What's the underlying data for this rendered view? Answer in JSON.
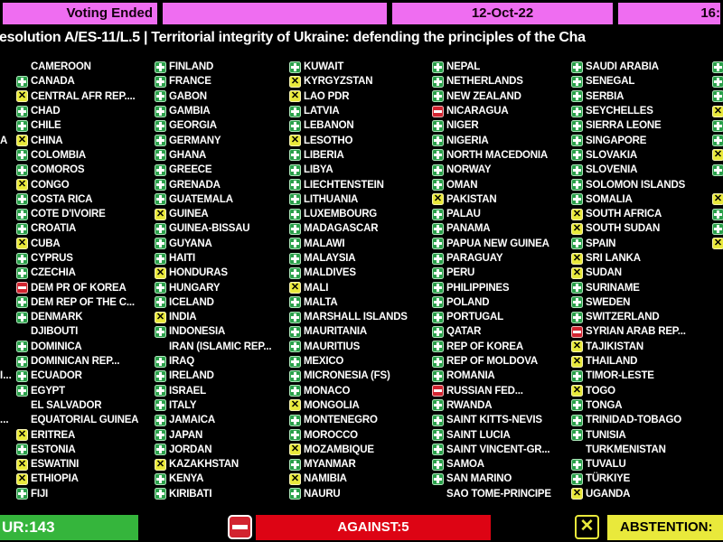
{
  "header": {
    "status": "Voting Ended",
    "date": "12-Oct-22",
    "time": "16:"
  },
  "title": "esolution A/ES-11/L.5 | Territorial integrity of Ukraine: defending the principles of the Cha",
  "grid": {
    "columns": [
      {
        "countries": [
          {
            "name": "CAMEROON",
            "vote": "none"
          },
          {
            "name": "CANADA",
            "vote": "plus"
          },
          {
            "name": "CENTRAL AFR REP....",
            "vote": "x"
          },
          {
            "name": "CHAD",
            "vote": "plus"
          },
          {
            "name": "CHILE",
            "vote": "plus"
          },
          {
            "name": "CHINA",
            "vote": "x"
          },
          {
            "name": "COLOMBIA",
            "vote": "plus"
          },
          {
            "name": "COMOROS",
            "vote": "plus"
          },
          {
            "name": "CONGO",
            "vote": "x"
          },
          {
            "name": "COSTA RICA",
            "vote": "plus"
          },
          {
            "name": "COTE D'IVOIRE",
            "vote": "plus"
          },
          {
            "name": "CROATIA",
            "vote": "plus"
          },
          {
            "name": "CUBA",
            "vote": "x"
          },
          {
            "name": "CYPRUS",
            "vote": "plus"
          },
          {
            "name": "CZECHIA",
            "vote": "plus"
          },
          {
            "name": "DEM PR OF KOREA",
            "vote": "minus"
          },
          {
            "name": "DEM REP OF THE C...",
            "vote": "plus"
          },
          {
            "name": "DENMARK",
            "vote": "plus"
          },
          {
            "name": "DJIBOUTI",
            "vote": "none"
          },
          {
            "name": "DOMINICA",
            "vote": "plus"
          },
          {
            "name": "DOMINICAN REP...",
            "vote": "plus"
          },
          {
            "name": "ECUADOR",
            "vote": "plus"
          },
          {
            "name": "EGYPT",
            "vote": "plus"
          },
          {
            "name": "EL SALVADOR",
            "vote": "none"
          },
          {
            "name": "EQUATORIAL GUINEA",
            "vote": "none"
          },
          {
            "name": "ERITREA",
            "vote": "x"
          },
          {
            "name": "ESTONIA",
            "vote": "plus"
          },
          {
            "name": "ESWATINI",
            "vote": "x"
          },
          {
            "name": "ETHIOPIA",
            "vote": "x"
          },
          {
            "name": "FIJI",
            "vote": "plus"
          }
        ]
      },
      {
        "countries": [
          {
            "name": "FINLAND",
            "vote": "plus"
          },
          {
            "name": "FRANCE",
            "vote": "plus"
          },
          {
            "name": "GABON",
            "vote": "plus"
          },
          {
            "name": "GAMBIA",
            "vote": "plus"
          },
          {
            "name": "GEORGIA",
            "vote": "plus"
          },
          {
            "name": "GERMANY",
            "vote": "plus"
          },
          {
            "name": "GHANA",
            "vote": "plus"
          },
          {
            "name": "GREECE",
            "vote": "plus"
          },
          {
            "name": "GRENADA",
            "vote": "plus"
          },
          {
            "name": "GUATEMALA",
            "vote": "plus"
          },
          {
            "name": "GUINEA",
            "vote": "x"
          },
          {
            "name": "GUINEA-BISSAU",
            "vote": "plus"
          },
          {
            "name": "GUYANA",
            "vote": "plus"
          },
          {
            "name": "HAITI",
            "vote": "plus"
          },
          {
            "name": "HONDURAS",
            "vote": "x"
          },
          {
            "name": "HUNGARY",
            "vote": "plus"
          },
          {
            "name": "ICELAND",
            "vote": "plus"
          },
          {
            "name": "INDIA",
            "vote": "x"
          },
          {
            "name": "INDONESIA",
            "vote": "plus"
          },
          {
            "name": "IRAN (ISLAMIC REP...",
            "vote": "none"
          },
          {
            "name": "IRAQ",
            "vote": "plus"
          },
          {
            "name": "IRELAND",
            "vote": "plus"
          },
          {
            "name": "ISRAEL",
            "vote": "plus"
          },
          {
            "name": "ITALY",
            "vote": "plus"
          },
          {
            "name": "JAMAICA",
            "vote": "plus"
          },
          {
            "name": "JAPAN",
            "vote": "plus"
          },
          {
            "name": "JORDAN",
            "vote": "plus"
          },
          {
            "name": "KAZAKHSTAN",
            "vote": "x"
          },
          {
            "name": "KENYA",
            "vote": "plus"
          },
          {
            "name": "KIRIBATI",
            "vote": "plus"
          }
        ]
      },
      {
        "countries": [
          {
            "name": "KUWAIT",
            "vote": "plus"
          },
          {
            "name": "KYRGYZSTAN",
            "vote": "x"
          },
          {
            "name": "LAO PDR",
            "vote": "x"
          },
          {
            "name": "LATVIA",
            "vote": "plus"
          },
          {
            "name": "LEBANON",
            "vote": "plus"
          },
          {
            "name": "LESOTHO",
            "vote": "x"
          },
          {
            "name": "LIBERIA",
            "vote": "plus"
          },
          {
            "name": "LIBYA",
            "vote": "plus"
          },
          {
            "name": "LIECHTENSTEIN",
            "vote": "plus"
          },
          {
            "name": "LITHUANIA",
            "vote": "plus"
          },
          {
            "name": "LUXEMBOURG",
            "vote": "plus"
          },
          {
            "name": "MADAGASCAR",
            "vote": "plus"
          },
          {
            "name": "MALAWI",
            "vote": "plus"
          },
          {
            "name": "MALAYSIA",
            "vote": "plus"
          },
          {
            "name": "MALDIVES",
            "vote": "plus"
          },
          {
            "name": "MALI",
            "vote": "x"
          },
          {
            "name": "MALTA",
            "vote": "plus"
          },
          {
            "name": "MARSHALL ISLANDS",
            "vote": "plus"
          },
          {
            "name": "MAURITANIA",
            "vote": "plus"
          },
          {
            "name": "MAURITIUS",
            "vote": "plus"
          },
          {
            "name": "MEXICO",
            "vote": "plus"
          },
          {
            "name": "MICRONESIA (FS)",
            "vote": "plus"
          },
          {
            "name": "MONACO",
            "vote": "plus"
          },
          {
            "name": "MONGOLIA",
            "vote": "x"
          },
          {
            "name": "MONTENEGRO",
            "vote": "plus"
          },
          {
            "name": "MOROCCO",
            "vote": "plus"
          },
          {
            "name": "MOZAMBIQUE",
            "vote": "x"
          },
          {
            "name": "MYANMAR",
            "vote": "plus"
          },
          {
            "name": "NAMIBIA",
            "vote": "x"
          },
          {
            "name": "NAURU",
            "vote": "plus"
          }
        ]
      },
      {
        "countries": [
          {
            "name": "NEPAL",
            "vote": "plus"
          },
          {
            "name": "NETHERLANDS",
            "vote": "plus"
          },
          {
            "name": "NEW ZEALAND",
            "vote": "plus"
          },
          {
            "name": "NICARAGUA",
            "vote": "minus"
          },
          {
            "name": "NIGER",
            "vote": "plus"
          },
          {
            "name": "NIGERIA",
            "vote": "plus"
          },
          {
            "name": "NORTH MACEDONIA",
            "vote": "plus"
          },
          {
            "name": "NORWAY",
            "vote": "plus"
          },
          {
            "name": "OMAN",
            "vote": "plus"
          },
          {
            "name": "PAKISTAN",
            "vote": "x"
          },
          {
            "name": "PALAU",
            "vote": "plus"
          },
          {
            "name": "PANAMA",
            "vote": "plus"
          },
          {
            "name": "PAPUA NEW GUINEA",
            "vote": "plus"
          },
          {
            "name": "PARAGUAY",
            "vote": "plus"
          },
          {
            "name": "PERU",
            "vote": "plus"
          },
          {
            "name": "PHILIPPINES",
            "vote": "plus"
          },
          {
            "name": "POLAND",
            "vote": "plus"
          },
          {
            "name": "PORTUGAL",
            "vote": "plus"
          },
          {
            "name": "QATAR",
            "vote": "plus"
          },
          {
            "name": "REP OF KOREA",
            "vote": "plus"
          },
          {
            "name": "REP OF MOLDOVA",
            "vote": "plus"
          },
          {
            "name": "ROMANIA",
            "vote": "plus"
          },
          {
            "name": "RUSSIAN FED...",
            "vote": "minus"
          },
          {
            "name": "RWANDA",
            "vote": "plus"
          },
          {
            "name": "SAINT KITTS-NEVIS",
            "vote": "plus"
          },
          {
            "name": "SAINT LUCIA",
            "vote": "plus"
          },
          {
            "name": "SAINT VINCENT-GR...",
            "vote": "plus"
          },
          {
            "name": "SAMOA",
            "vote": "plus"
          },
          {
            "name": "SAN MARINO",
            "vote": "plus"
          },
          {
            "name": "SAO TOME-PRINCIPE",
            "vote": "none"
          }
        ]
      },
      {
        "countries": [
          {
            "name": "SAUDI ARABIA",
            "vote": "plus"
          },
          {
            "name": "SENEGAL",
            "vote": "plus"
          },
          {
            "name": "SERBIA",
            "vote": "plus"
          },
          {
            "name": "SEYCHELLES",
            "vote": "plus"
          },
          {
            "name": "SIERRA LEONE",
            "vote": "plus"
          },
          {
            "name": "SINGAPORE",
            "vote": "plus"
          },
          {
            "name": "SLOVAKIA",
            "vote": "plus"
          },
          {
            "name": "SLOVENIA",
            "vote": "plus"
          },
          {
            "name": "SOLOMON ISLANDS",
            "vote": "plus"
          },
          {
            "name": "SOMALIA",
            "vote": "plus"
          },
          {
            "name": "SOUTH AFRICA",
            "vote": "x"
          },
          {
            "name": "SOUTH SUDAN",
            "vote": "x"
          },
          {
            "name": "SPAIN",
            "vote": "plus"
          },
          {
            "name": "SRI LANKA",
            "vote": "x"
          },
          {
            "name": "SUDAN",
            "vote": "x"
          },
          {
            "name": "SURINAME",
            "vote": "plus"
          },
          {
            "name": "SWEDEN",
            "vote": "plus"
          },
          {
            "name": "SWITZERLAND",
            "vote": "plus"
          },
          {
            "name": "SYRIAN ARAB REP...",
            "vote": "minus"
          },
          {
            "name": "TAJIKISTAN",
            "vote": "x"
          },
          {
            "name": "THAILAND",
            "vote": "x"
          },
          {
            "name": "TIMOR-LESTE",
            "vote": "plus"
          },
          {
            "name": "TOGO",
            "vote": "x"
          },
          {
            "name": "TONGA",
            "vote": "plus"
          },
          {
            "name": "TRINIDAD-TOBAGO",
            "vote": "plus"
          },
          {
            "name": "TUNISIA",
            "vote": "plus"
          },
          {
            "name": "TURKMENISTAN",
            "vote": "none"
          },
          {
            "name": "TUVALU",
            "vote": "plus"
          },
          {
            "name": "TÜRKIYE",
            "vote": "plus"
          },
          {
            "name": "UGANDA",
            "vote": "x"
          }
        ]
      }
    ],
    "left_edge_fragments": [
      {
        "row": 6,
        "text": "A"
      },
      {
        "row": 22,
        "text": "I..."
      },
      {
        "row": 25,
        "text": "..."
      }
    ],
    "right_edge_votes": [
      "plus",
      "plus",
      "plus",
      "x",
      "plus",
      "plus",
      "x",
      "plus",
      "none",
      "x",
      "plus",
      "plus",
      "x"
    ]
  },
  "footer": {
    "in_favour": "UR:143",
    "against": "AGAINST:5",
    "abstention": "ABSTENTION:"
  },
  "icons": {
    "in_favour": "plus-icon",
    "against": "minus-icon",
    "abstention": "x-icon"
  },
  "colors": {
    "header_bg": "#ef6df1",
    "favour_green": "#35b53c",
    "against_red": "#dd0414",
    "abstention_yellow": "#e9e93b",
    "vote_plus": "#2ba04b",
    "vote_minus": "#d22430"
  }
}
